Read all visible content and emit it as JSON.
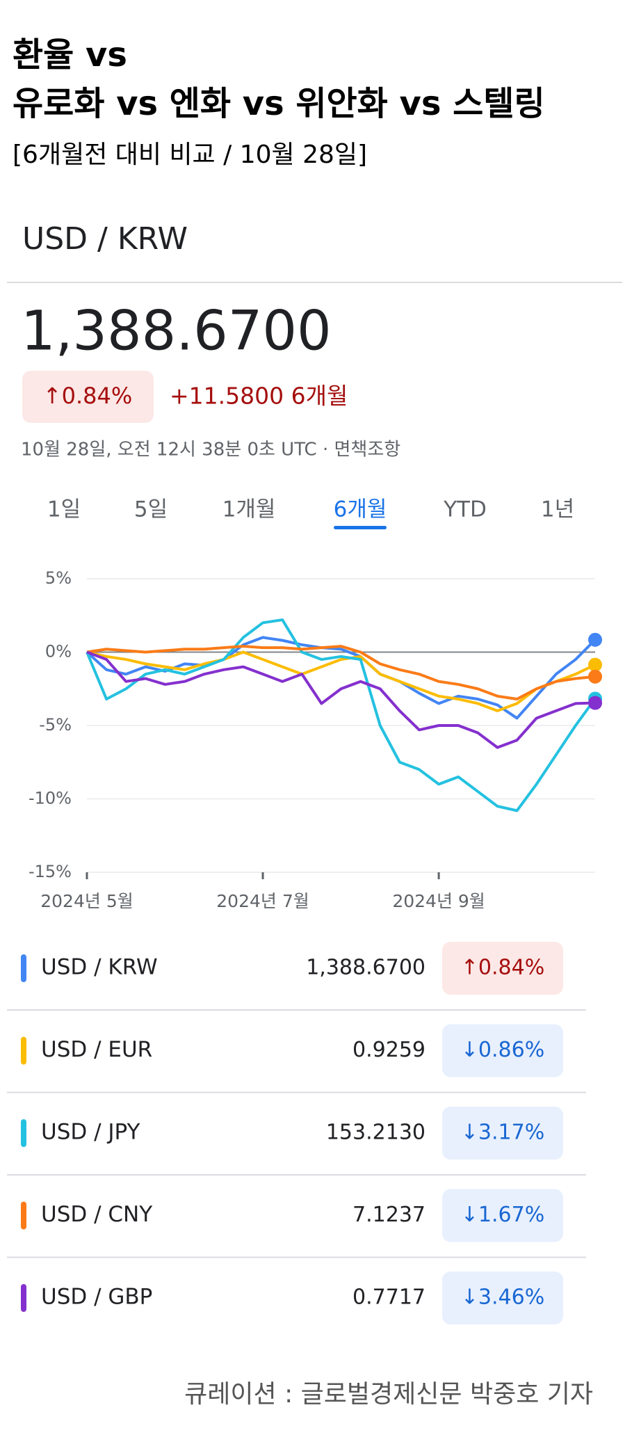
{
  "header": {
    "title_line1": "환율 vs",
    "title_line2": "유로화 vs 엔화 vs 위안화 vs 스텔링",
    "subtitle": "[6개월전 대비 비교 / 10월 28일]"
  },
  "quote": {
    "pair": "USD / KRW",
    "price": "1,388.6700",
    "change": "↑0.84%",
    "change_abs": "+11.5800 6개월",
    "timestamp": "10월 28일, 오전 12시 38분 0초 UTC · 면책조항",
    "tabs": [
      "1일",
      "5일",
      "1개월",
      "6개월",
      "YTD",
      "1년"
    ],
    "active_tab": 3
  },
  "chart_data": {
    "type": "line",
    "categories": [
      "2024년 5월",
      null,
      null,
      null,
      null,
      null,
      null,
      null,
      null,
      "2024년 7월",
      null,
      null,
      null,
      null,
      null,
      null,
      null,
      null,
      "2024년 9월",
      null,
      null,
      null,
      null,
      null,
      null,
      null,
      null
    ],
    "ylim": [
      -15,
      5
    ],
    "yticks": [
      {
        "value": 5,
        "label": "5%"
      },
      {
        "value": 0,
        "label": "0%"
      },
      {
        "value": -5,
        "label": "-5%"
      },
      {
        "value": -10,
        "label": "-10%"
      },
      {
        "value": -15,
        "label": "-15%"
      }
    ],
    "grid": true,
    "series": [
      {
        "name": "USD / KRW",
        "color": "#4285f4",
        "values": [
          0,
          -1.2,
          -1.5,
          -1.0,
          -1.3,
          -0.8,
          -0.9,
          -0.5,
          0.5,
          1.0,
          0.8,
          0.5,
          0.3,
          0.2,
          -0.3,
          -1.5,
          -2.0,
          -2.8,
          -3.5,
          -3.0,
          -3.2,
          -3.6,
          -4.5,
          -3.0,
          -1.5,
          -0.5,
          0.84
        ]
      },
      {
        "name": "USD / EUR",
        "color": "#fbbc04",
        "values": [
          0,
          -0.3,
          -0.5,
          -0.8,
          -1.0,
          -1.2,
          -0.8,
          -0.5,
          0,
          -0.5,
          -1.0,
          -1.5,
          -1.0,
          -0.5,
          -0.3,
          -1.5,
          -2.0,
          -2.5,
          -3.0,
          -3.2,
          -3.5,
          -4.0,
          -3.5,
          -2.5,
          -2.0,
          -1.5,
          -0.86
        ]
      },
      {
        "name": "USD / JPY",
        "color": "#24c1e0",
        "values": [
          0,
          -3.2,
          -2.5,
          -1.5,
          -1.2,
          -1.5,
          -1.0,
          -0.5,
          1.0,
          2.0,
          2.2,
          0,
          -0.5,
          -0.3,
          -0.5,
          -5,
          -7.5,
          -8.0,
          -9.0,
          -8.5,
          -9.5,
          -10.5,
          -10.8,
          -9.0,
          -7.0,
          -5.0,
          -3.17
        ]
      },
      {
        "name": "USD / CNY",
        "color": "#fa7b17",
        "values": [
          0,
          0.2,
          0.1,
          0,
          0.1,
          0.2,
          0.2,
          0.3,
          0.4,
          0.3,
          0.3,
          0.2,
          0.3,
          0.4,
          0,
          -0.8,
          -1.2,
          -1.5,
          -2.0,
          -2.2,
          -2.5,
          -3.0,
          -3.2,
          -2.5,
          -2.0,
          -1.8,
          -1.67
        ]
      },
      {
        "name": "USD / GBP",
        "color": "#8430ce",
        "values": [
          0,
          -0.5,
          -2.0,
          -1.8,
          -2.2,
          -2.0,
          -1.5,
          -1.2,
          -1.0,
          -1.5,
          -2.0,
          -1.5,
          -3.5,
          -2.5,
          -2.0,
          -2.5,
          -4.0,
          -5.3,
          -5.0,
          -5.0,
          -5.5,
          -6.5,
          -6.0,
          -4.5,
          -4.0,
          -3.5,
          -3.46
        ]
      }
    ]
  },
  "table": {
    "rows": [
      {
        "value": "1,388.6700",
        "change": "↑0.84%"
      },
      {
        "value": "0.9259",
        "change": "↓0.86%"
      },
      {
        "value": "153.2130",
        "change": "↓3.17%"
      },
      {
        "value": "7.1237",
        "change": "↓1.67%"
      },
      {
        "value": "0.7717",
        "change": "↓3.46%"
      }
    ]
  },
  "footer": "큐레이션 : 글로벌경제신문 박중호 기자"
}
